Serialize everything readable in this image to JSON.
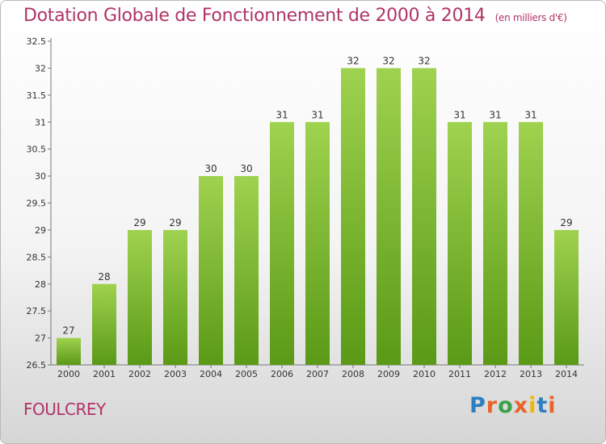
{
  "header": {
    "title": "Dotation Globale de Fonctionnement de 2000 à 2014",
    "units": "(en milliers d'€)"
  },
  "footer": {
    "town": "FOULCREY",
    "logo_text": "Proxiti"
  },
  "colors": {
    "title": "#b03466",
    "bar_top": "#9fd24f",
    "bar_bottom": "#5a9a16"
  },
  "chart_data": {
    "type": "bar",
    "categories": [
      "2000",
      "2001",
      "2002",
      "2003",
      "2004",
      "2005",
      "2006",
      "2007",
      "2008",
      "2009",
      "2010",
      "2011",
      "2012",
      "2013",
      "2014"
    ],
    "values": [
      27,
      28,
      29,
      29,
      30,
      30,
      31,
      31,
      32,
      32,
      32,
      31,
      31,
      31,
      29
    ],
    "ylim": [
      26.5,
      32.5
    ],
    "yticks": [
      "26.5",
      "27",
      "27.5",
      "28",
      "28.5",
      "29",
      "29.5",
      "30",
      "30.5",
      "31",
      "31.5",
      "32",
      "32.5"
    ],
    "grid": false
  }
}
